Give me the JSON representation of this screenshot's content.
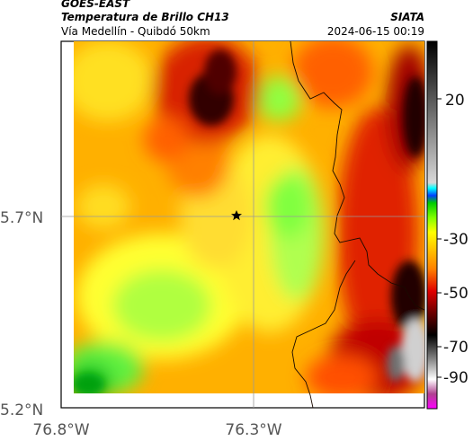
{
  "header": {
    "satellite": "GOES-EAST",
    "product": "Temperatura de Brillo CH13",
    "region": "Vía Medellín - Quibdó 50km",
    "agency": "SIATA",
    "timestamp": "2024-06-15 00:19"
  },
  "axes": {
    "y_ticks": [
      "5.7°N",
      "5.2°N"
    ],
    "x_ticks": [
      "76.8°W",
      "76.3°W"
    ]
  },
  "colorbar": {
    "ticks": [
      "20",
      "-30",
      "-50",
      "-70",
      "-90"
    ]
  },
  "marker": {
    "icon": "star-marker-icon"
  }
}
